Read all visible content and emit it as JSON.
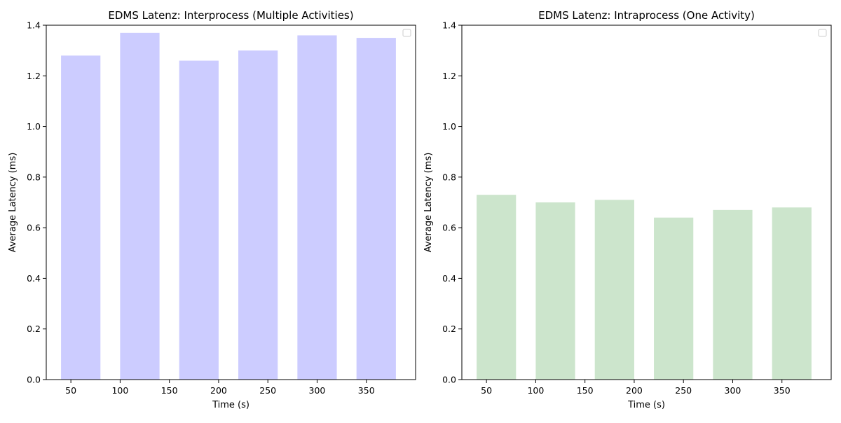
{
  "chart_data": [
    {
      "type": "bar",
      "title": "EDMS Latenz: Interprocess (Multiple Activities)",
      "xlabel": "Time (s)",
      "ylabel": "Average Latency (ms)",
      "x": [
        60,
        120,
        180,
        240,
        300,
        360
      ],
      "values": [
        1.28,
        1.37,
        1.26,
        1.3,
        1.36,
        1.35
      ],
      "bar_width": 40,
      "xlim": [
        25,
        400
      ],
      "ylim": [
        0,
        1.4
      ],
      "xticks": [
        50,
        100,
        150,
        200,
        250,
        300,
        350
      ],
      "yticks": [
        0.0,
        0.2,
        0.4,
        0.6,
        0.8,
        1.0,
        1.2,
        1.4
      ],
      "ytick_labels": [
        "0.0",
        "0.2",
        "0.4",
        "0.6",
        "0.8",
        "1.0",
        "1.2",
        "1.4"
      ],
      "color": "#ccccff",
      "legend": "top-right, empty",
      "grid": false
    },
    {
      "type": "bar",
      "title": "EDMS Latenz: Intraprocess (One Activity)",
      "xlabel": "Time (s)",
      "ylabel": "Average Latency (ms)",
      "x": [
        60,
        120,
        180,
        240,
        300,
        360
      ],
      "values": [
        0.73,
        0.7,
        0.71,
        0.64,
        0.67,
        0.68
      ],
      "bar_width": 40,
      "xlim": [
        25,
        400
      ],
      "ylim": [
        0,
        1.4
      ],
      "xticks": [
        50,
        100,
        150,
        200,
        250,
        300,
        350
      ],
      "yticks": [
        0.0,
        0.2,
        0.4,
        0.6,
        0.8,
        1.0,
        1.2,
        1.4
      ],
      "ytick_labels": [
        "0.0",
        "0.2",
        "0.4",
        "0.6",
        "0.8",
        "1.0",
        "1.2",
        "1.4"
      ],
      "color": "#cce5cc",
      "legend": "top-right, empty",
      "grid": false
    }
  ]
}
